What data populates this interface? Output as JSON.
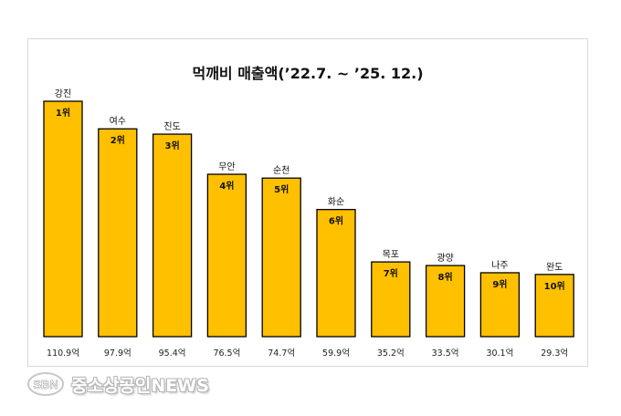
{
  "chart_data": {
    "type": "bar",
    "title": "먹깨비 매출액(’22.7. ~ ’25. 12.)",
    "categories": [
      "강진",
      "여수",
      "진도",
      "무안",
      "순천",
      "화순",
      "목포",
      "광양",
      "나주",
      "완도"
    ],
    "values": [
      110.9,
      97.9,
      95.4,
      76.5,
      74.7,
      59.9,
      35.2,
      33.5,
      30.1,
      29.3
    ],
    "value_labels": [
      "110.9억",
      "97.9억",
      "95.4억",
      "76.5억",
      "74.7억",
      "59.9억",
      "35.2억",
      "33.5억",
      "30.1억",
      "29.3억"
    ],
    "rank_labels": [
      "1위",
      "2위",
      "3위",
      "4위",
      "5위",
      "6위",
      "7위",
      "8위",
      "9위",
      "10위"
    ],
    "ylim": [
      0,
      110.9
    ],
    "grid": false,
    "legend": "none",
    "bar_color": "#FFC000",
    "bar_edge_color": "#000000"
  },
  "watermark": {
    "logo_text": "SBN",
    "text": "중소상공인NEWS"
  }
}
